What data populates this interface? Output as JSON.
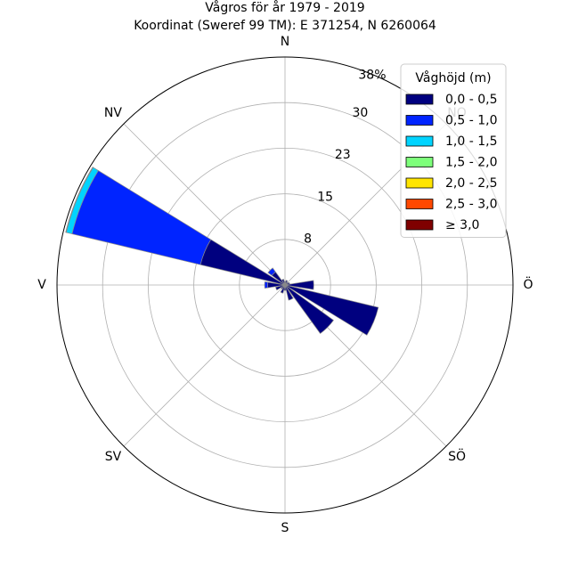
{
  "chart_data": {
    "type": "windrose",
    "title": "Vågros för år 1979 - 2019",
    "subtitle": "Koordinat (Sweref 99 TM): E 371254, N 6260064",
    "directions": [
      "N",
      "NO",
      "Ö",
      "SÖ",
      "S",
      "SV",
      "V",
      "NV"
    ],
    "radial_ticks": [
      "8",
      "15",
      "23",
      "30"
    ],
    "radial_max_label": "38%",
    "rmax": 38,
    "rticks": [
      7.6,
      15.2,
      22.8,
      30.4
    ],
    "grid": true,
    "legend": {
      "title": "Våghöjd (m)",
      "placement": "top-right",
      "entries": [
        {
          "label": "0,0 - 0,5",
          "color": "#00007f"
        },
        {
          "label": "0,5 - 1,0",
          "color": "#0024ff"
        },
        {
          "label": "1,0 - 1,5",
          "color": "#00d4ff"
        },
        {
          "label": "1,5 - 2,0",
          "color": "#7dff7a"
        },
        {
          "label": "2,0 - 2,5",
          "color": "#ffe500"
        },
        {
          "label": "2,5 - 3,0",
          "color": "#ff4800"
        },
        {
          "label": "≥ 3,0",
          "color": "#7f0000"
        }
      ]
    },
    "sectors": [
      {
        "dir_deg": 0,
        "values": [
          0.6,
          0,
          0,
          0,
          0,
          0,
          0
        ]
      },
      {
        "dir_deg": 22.5,
        "values": [
          0.8,
          0,
          0,
          0,
          0,
          0,
          0
        ]
      },
      {
        "dir_deg": 45,
        "values": [
          0.6,
          0,
          0,
          0,
          0,
          0,
          0
        ]
      },
      {
        "dir_deg": 67.5,
        "values": [
          0.8,
          0,
          0,
          0,
          0,
          0,
          0
        ]
      },
      {
        "dir_deg": 90,
        "values": [
          4.8,
          0,
          0,
          0,
          0,
          0,
          0
        ]
      },
      {
        "dir_deg": 112.5,
        "values": [
          16.0,
          0,
          0,
          0,
          0,
          0,
          0
        ]
      },
      {
        "dir_deg": 135,
        "values": [
          10.0,
          0,
          0,
          0,
          0,
          0,
          0
        ]
      },
      {
        "dir_deg": 157.5,
        "values": [
          2.6,
          0,
          0,
          0,
          0,
          0,
          0
        ]
      },
      {
        "dir_deg": 180,
        "values": [
          0.9,
          0,
          0,
          0,
          0,
          0,
          0
        ]
      },
      {
        "dir_deg": 202.5,
        "values": [
          1.4,
          0,
          0,
          0,
          0,
          0,
          0
        ]
      },
      {
        "dir_deg": 225,
        "values": [
          0.8,
          0,
          0,
          0,
          0,
          0,
          0
        ]
      },
      {
        "dir_deg": 247.5,
        "values": [
          1.6,
          0,
          0,
          0,
          0,
          0,
          0
        ]
      },
      {
        "dir_deg": 270,
        "values": [
          2.9,
          0.5,
          0,
          0,
          0,
          0,
          0
        ]
      },
      {
        "dir_deg": 292.5,
        "values": [
          14.5,
          22.0,
          1.0,
          0.1,
          0,
          0,
          0
        ]
      },
      {
        "dir_deg": 315,
        "values": [
          2.7,
          0.8,
          0,
          0,
          0,
          0,
          0
        ]
      },
      {
        "dir_deg": 337.5,
        "values": [
          1.0,
          0,
          0,
          0,
          0,
          0,
          0
        ]
      }
    ]
  }
}
